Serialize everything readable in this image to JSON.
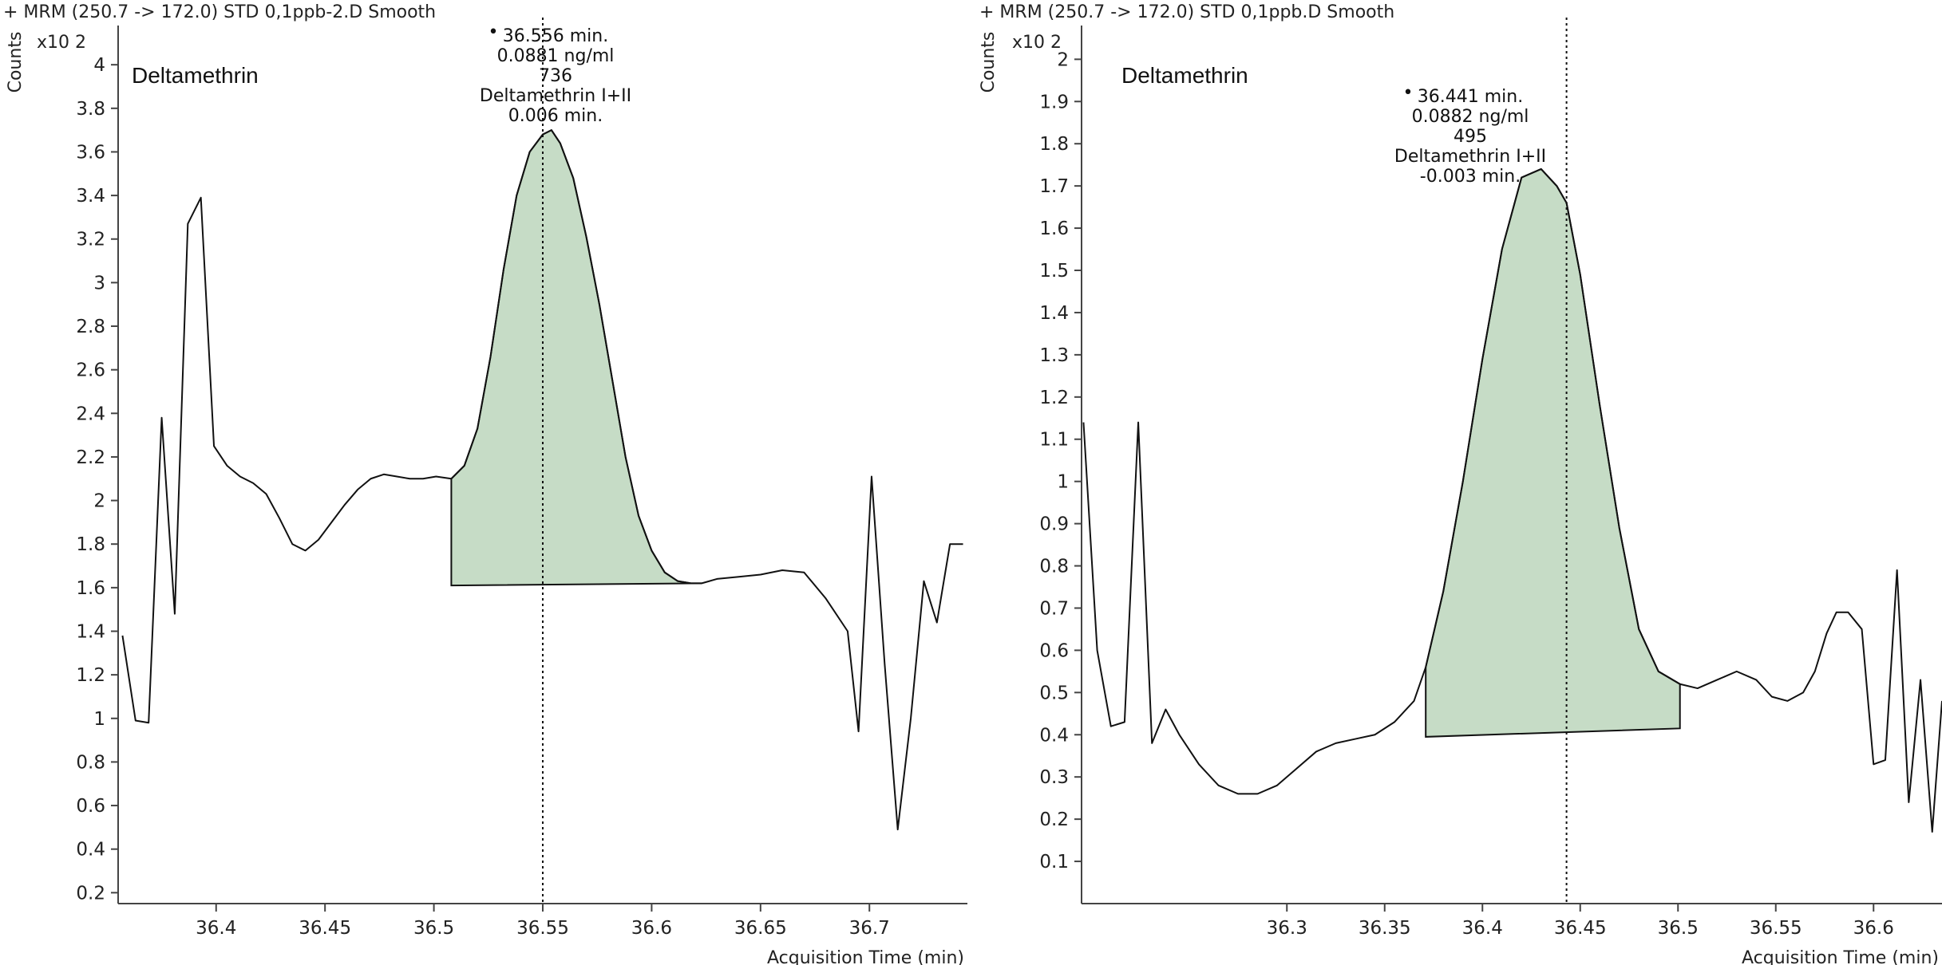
{
  "chart_data": [
    {
      "type": "line",
      "header": "+ MRM (250.7 -> 172.0) STD 0,1ppb-2.D  Smooth",
      "compound": "Deltamethrin",
      "ylabel": "Counts",
      "yscale_label": "x10 2",
      "xlabel": "Acquisition Time (min)",
      "xlim": [
        36.355,
        36.745
      ],
      "ylim": [
        0.15,
        4.18
      ],
      "xticks": [
        36.4,
        36.45,
        36.5,
        36.55,
        36.6,
        36.65,
        36.7
      ],
      "yticks": [
        0.2,
        0.4,
        0.6,
        0.8,
        1,
        1.2,
        1.4,
        1.6,
        1.8,
        2,
        2.2,
        2.4,
        2.6,
        2.8,
        3,
        3.2,
        3.4,
        3.6,
        3.8,
        4
      ],
      "annotation": [
        "36.556 min.",
        "0.0881 ng/ml",
        "736",
        "Deltamethrin I+II",
        "0.006 min."
      ],
      "marker_x": 36.55,
      "peak": {
        "start": 36.508,
        "end": 36.623,
        "baseline": [
          [
            36.508,
            1.61
          ],
          [
            36.623,
            1.62
          ]
        ],
        "fill_color": "#c6dcc6"
      },
      "series": [
        {
          "x": [
            36.357,
            36.363,
            36.369,
            36.375,
            36.381,
            36.387,
            36.393,
            36.399,
            36.405,
            36.411,
            36.417,
            36.423,
            36.429,
            36.435,
            36.441,
            36.447,
            36.453,
            36.459,
            36.465,
            36.471,
            36.477,
            36.483,
            36.489,
            36.495,
            36.501,
            36.508,
            36.514,
            36.52,
            36.526,
            36.532,
            36.538,
            36.544,
            36.55,
            36.554,
            36.558,
            36.564,
            36.57,
            36.576,
            36.582,
            36.588,
            36.594,
            36.6,
            36.606,
            36.612,
            36.618,
            36.623,
            36.63,
            36.64,
            36.65,
            36.66,
            36.67,
            36.68,
            36.69,
            36.695,
            36.701,
            36.707,
            36.713,
            36.719,
            36.725,
            36.731,
            36.737,
            36.743
          ],
          "y": [
            1.38,
            0.99,
            0.98,
            2.38,
            1.48,
            3.27,
            3.39,
            2.25,
            2.16,
            2.11,
            2.08,
            2.03,
            1.92,
            1.8,
            1.77,
            1.82,
            1.9,
            1.98,
            2.05,
            2.1,
            2.12,
            2.11,
            2.1,
            2.1,
            2.11,
            2.1,
            2.16,
            2.33,
            2.66,
            3.06,
            3.4,
            3.6,
            3.68,
            3.7,
            3.64,
            3.48,
            3.21,
            2.9,
            2.55,
            2.2,
            1.93,
            1.77,
            1.67,
            1.63,
            1.62,
            1.62,
            1.64,
            1.65,
            1.66,
            1.68,
            1.67,
            1.55,
            1.4,
            0.94,
            2.11,
            1.25,
            0.49,
            1.0,
            1.63,
            1.44,
            1.8,
            1.8
          ]
        }
      ]
    },
    {
      "type": "line",
      "header": "+ MRM (250.7 -> 172.0) STD 0,1ppb.D  Smooth",
      "compound": "Deltamethrin",
      "ylabel": "Counts",
      "yscale_label": "x10 2",
      "xlabel": "Acquisition Time (min)",
      "xlim": [
        36.195,
        36.635
      ],
      "ylim": [
        0.0,
        2.08
      ],
      "xticks": [
        36.3,
        36.35,
        36.4,
        36.45,
        36.5,
        36.55,
        36.6
      ],
      "yticks": [
        0.1,
        0.2,
        0.3,
        0.4,
        0.5,
        0.6,
        0.7,
        0.8,
        0.9,
        1,
        1.1,
        1.2,
        1.3,
        1.4,
        1.5,
        1.6,
        1.7,
        1.8,
        1.9,
        2
      ],
      "annotation": [
        "36.441 min.",
        "0.0882 ng/ml",
        "495",
        "Deltamethrin I+II",
        "-0.003 min."
      ],
      "marker_x": 36.443,
      "peak": {
        "start": 36.371,
        "end": 36.501,
        "baseline": [
          [
            36.371,
            0.395
          ],
          [
            36.501,
            0.415
          ]
        ],
        "fill_color": "#c6dcc6"
      },
      "series": [
        {
          "x": [
            36.196,
            36.203,
            36.21,
            36.217,
            36.224,
            36.231,
            36.238,
            36.245,
            36.255,
            36.265,
            36.275,
            36.285,
            36.295,
            36.305,
            36.315,
            36.325,
            36.335,
            36.345,
            36.355,
            36.365,
            36.371,
            36.38,
            36.39,
            36.4,
            36.41,
            36.42,
            36.43,
            36.438,
            36.443,
            36.45,
            36.46,
            36.47,
            36.48,
            36.49,
            36.501,
            36.51,
            36.52,
            36.53,
            36.54,
            36.548,
            36.556,
            36.564,
            36.57,
            36.576,
            36.581,
            36.587,
            36.594,
            36.6,
            36.606,
            36.612,
            36.618,
            36.624,
            36.63,
            36.635
          ],
          "y": [
            1.14,
            0.6,
            0.42,
            0.43,
            1.14,
            0.38,
            0.46,
            0.4,
            0.33,
            0.28,
            0.26,
            0.26,
            0.28,
            0.32,
            0.36,
            0.38,
            0.39,
            0.4,
            0.43,
            0.48,
            0.56,
            0.74,
            1.0,
            1.29,
            1.55,
            1.72,
            1.74,
            1.7,
            1.66,
            1.49,
            1.18,
            0.89,
            0.65,
            0.55,
            0.52,
            0.51,
            0.53,
            0.55,
            0.53,
            0.49,
            0.48,
            0.5,
            0.55,
            0.64,
            0.69,
            0.69,
            0.65,
            0.33,
            0.34,
            0.79,
            0.24,
            0.53,
            0.17,
            0.48
          ]
        }
      ]
    }
  ]
}
